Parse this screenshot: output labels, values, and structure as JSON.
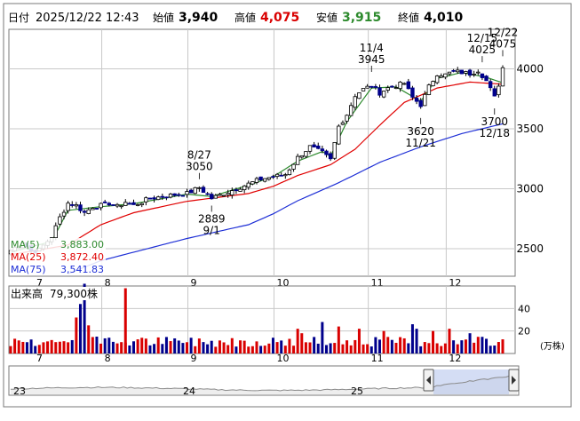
{
  "header": {
    "date_label": "日付",
    "date_value": "2025/12/22 12:43",
    "open_label": "始値",
    "open_value": "3,940",
    "high_label": "高値",
    "high_value": "4,075",
    "low_label": "安値",
    "low_value": "3,915",
    "close_label": "終値",
    "close_value": "4,010"
  },
  "legend": {
    "ma5": "MA(5)",
    "ma5_value": "3,883.00",
    "ma25": "MA(25)",
    "ma25_value": "3,872.40",
    "ma75": "MA(75)",
    "ma75_value": "3,541.83"
  },
  "volume_panel": {
    "label": "出来高",
    "value": "79,300株",
    "unit": "(万株)"
  },
  "colors": {
    "up": "#d90000",
    "down": "#00008c",
    "candle_up_fill": "#ffffff",
    "ma5": "#2d8a2d",
    "ma25": "#e00000",
    "ma75": "#1e2fd6",
    "nav_fill": "#b7c6ec",
    "nav_line": "#8a8a8a"
  },
  "chart_data": [
    {
      "type": "candlestick",
      "x_tick_labels": [
        "7",
        "8",
        "9",
        "10",
        "11",
        "12"
      ],
      "y_tick_labels": [
        "4000",
        "3500",
        "3000",
        "2500"
      ],
      "ylim": [
        2270,
        4330
      ],
      "y_ticks": [
        2500,
        3000,
        3500,
        4000
      ],
      "month_start_index": {
        "7": 0,
        "8": 22,
        "9": 43,
        "10": 64,
        "11": 87,
        "12": 106
      },
      "annotations": [
        {
          "label": "8/27",
          "value": "3050",
          "index": 46,
          "price": 3050,
          "position": "above"
        },
        {
          "label": "9/1",
          "value": "2889",
          "index": 49,
          "price": 2889,
          "position": "below"
        },
        {
          "label": "11/4",
          "value": "3945",
          "index": 88,
          "price": 3945,
          "position": "above"
        },
        {
          "label": "11/21",
          "value": "3620",
          "index": 100,
          "price": 3620,
          "position": "below"
        },
        {
          "label": "12/15",
          "value": "4025",
          "index": 115,
          "price": 4025,
          "position": "above"
        },
        {
          "label": "12/18",
          "value": "3700",
          "index": 118,
          "price": 3700,
          "position": "below"
        },
        {
          "label": "12/22",
          "value": "4075",
          "index": 120,
          "price": 4075,
          "position": "above"
        }
      ],
      "anchors": [
        [
          0,
          2485
        ],
        [
          3,
          2560
        ],
        [
          5,
          2480
        ],
        [
          7,
          2490
        ],
        [
          10,
          2600
        ],
        [
          12,
          2760
        ],
        [
          14,
          2880
        ],
        [
          16,
          2860
        ],
        [
          18,
          2800
        ],
        [
          20,
          2850
        ],
        [
          22,
          2860
        ],
        [
          24,
          2880
        ],
        [
          26,
          2850
        ],
        [
          28,
          2890
        ],
        [
          30,
          2860
        ],
        [
          32,
          2890
        ],
        [
          34,
          2920
        ],
        [
          36,
          2930
        ],
        [
          38,
          2940
        ],
        [
          40,
          2950
        ],
        [
          43,
          2960
        ],
        [
          46,
          3010
        ],
        [
          49,
          2920
        ],
        [
          52,
          2960
        ],
        [
          55,
          3000
        ],
        [
          58,
          3040
        ],
        [
          61,
          3080
        ],
        [
          64,
          3100
        ],
        [
          67,
          3120
        ],
        [
          70,
          3260
        ],
        [
          73,
          3350
        ],
        [
          76,
          3300
        ],
        [
          78,
          3240
        ],
        [
          80,
          3520
        ],
        [
          82,
          3620
        ],
        [
          84,
          3780
        ],
        [
          86,
          3830
        ],
        [
          88,
          3860
        ],
        [
          90,
          3800
        ],
        [
          92,
          3840
        ],
        [
          94,
          3860
        ],
        [
          96,
          3880
        ],
        [
          98,
          3760
        ],
        [
          100,
          3700
        ],
        [
          102,
          3850
        ],
        [
          104,
          3960
        ],
        [
          106,
          3950
        ],
        [
          108,
          3980
        ],
        [
          110,
          3970
        ],
        [
          112,
          3960
        ],
        [
          114,
          3990
        ],
        [
          116,
          3900
        ],
        [
          117,
          3830
        ],
        [
          118,
          3760
        ],
        [
          119,
          3870
        ],
        [
          120,
          4010
        ]
      ],
      "ma_anchors": {
        "ma5": [
          [
            0,
            2470
          ],
          [
            10,
            2560
          ],
          [
            14,
            2820
          ],
          [
            22,
            2850
          ],
          [
            30,
            2875
          ],
          [
            43,
            2955
          ],
          [
            49,
            2935
          ],
          [
            58,
            3030
          ],
          [
            64,
            3100
          ],
          [
            70,
            3230
          ],
          [
            76,
            3310
          ],
          [
            78,
            3270
          ],
          [
            82,
            3560
          ],
          [
            88,
            3840
          ],
          [
            94,
            3850
          ],
          [
            100,
            3730
          ],
          [
            104,
            3920
          ],
          [
            110,
            3970
          ],
          [
            116,
            3930
          ],
          [
            120,
            3883
          ]
        ],
        "ma25": [
          [
            0,
            2450
          ],
          [
            14,
            2530
          ],
          [
            22,
            2700
          ],
          [
            30,
            2800
          ],
          [
            43,
            2895
          ],
          [
            58,
            2960
          ],
          [
            64,
            3020
          ],
          [
            70,
            3110
          ],
          [
            78,
            3200
          ],
          [
            84,
            3330
          ],
          [
            90,
            3530
          ],
          [
            96,
            3720
          ],
          [
            104,
            3840
          ],
          [
            112,
            3890
          ],
          [
            120,
            3872
          ]
        ],
        "ma75": [
          [
            14,
            2290
          ],
          [
            22,
            2400
          ],
          [
            43,
            2585
          ],
          [
            58,
            2700
          ],
          [
            64,
            2790
          ],
          [
            70,
            2900
          ],
          [
            80,
            3050
          ],
          [
            90,
            3220
          ],
          [
            100,
            3350
          ],
          [
            110,
            3460
          ],
          [
            120,
            3541.83
          ]
        ]
      },
      "volume_ticks": [
        40,
        20
      ]
    },
    {
      "type": "area",
      "role": "navigator",
      "x_tick_labels": [
        "23",
        "24",
        "25"
      ]
    }
  ]
}
